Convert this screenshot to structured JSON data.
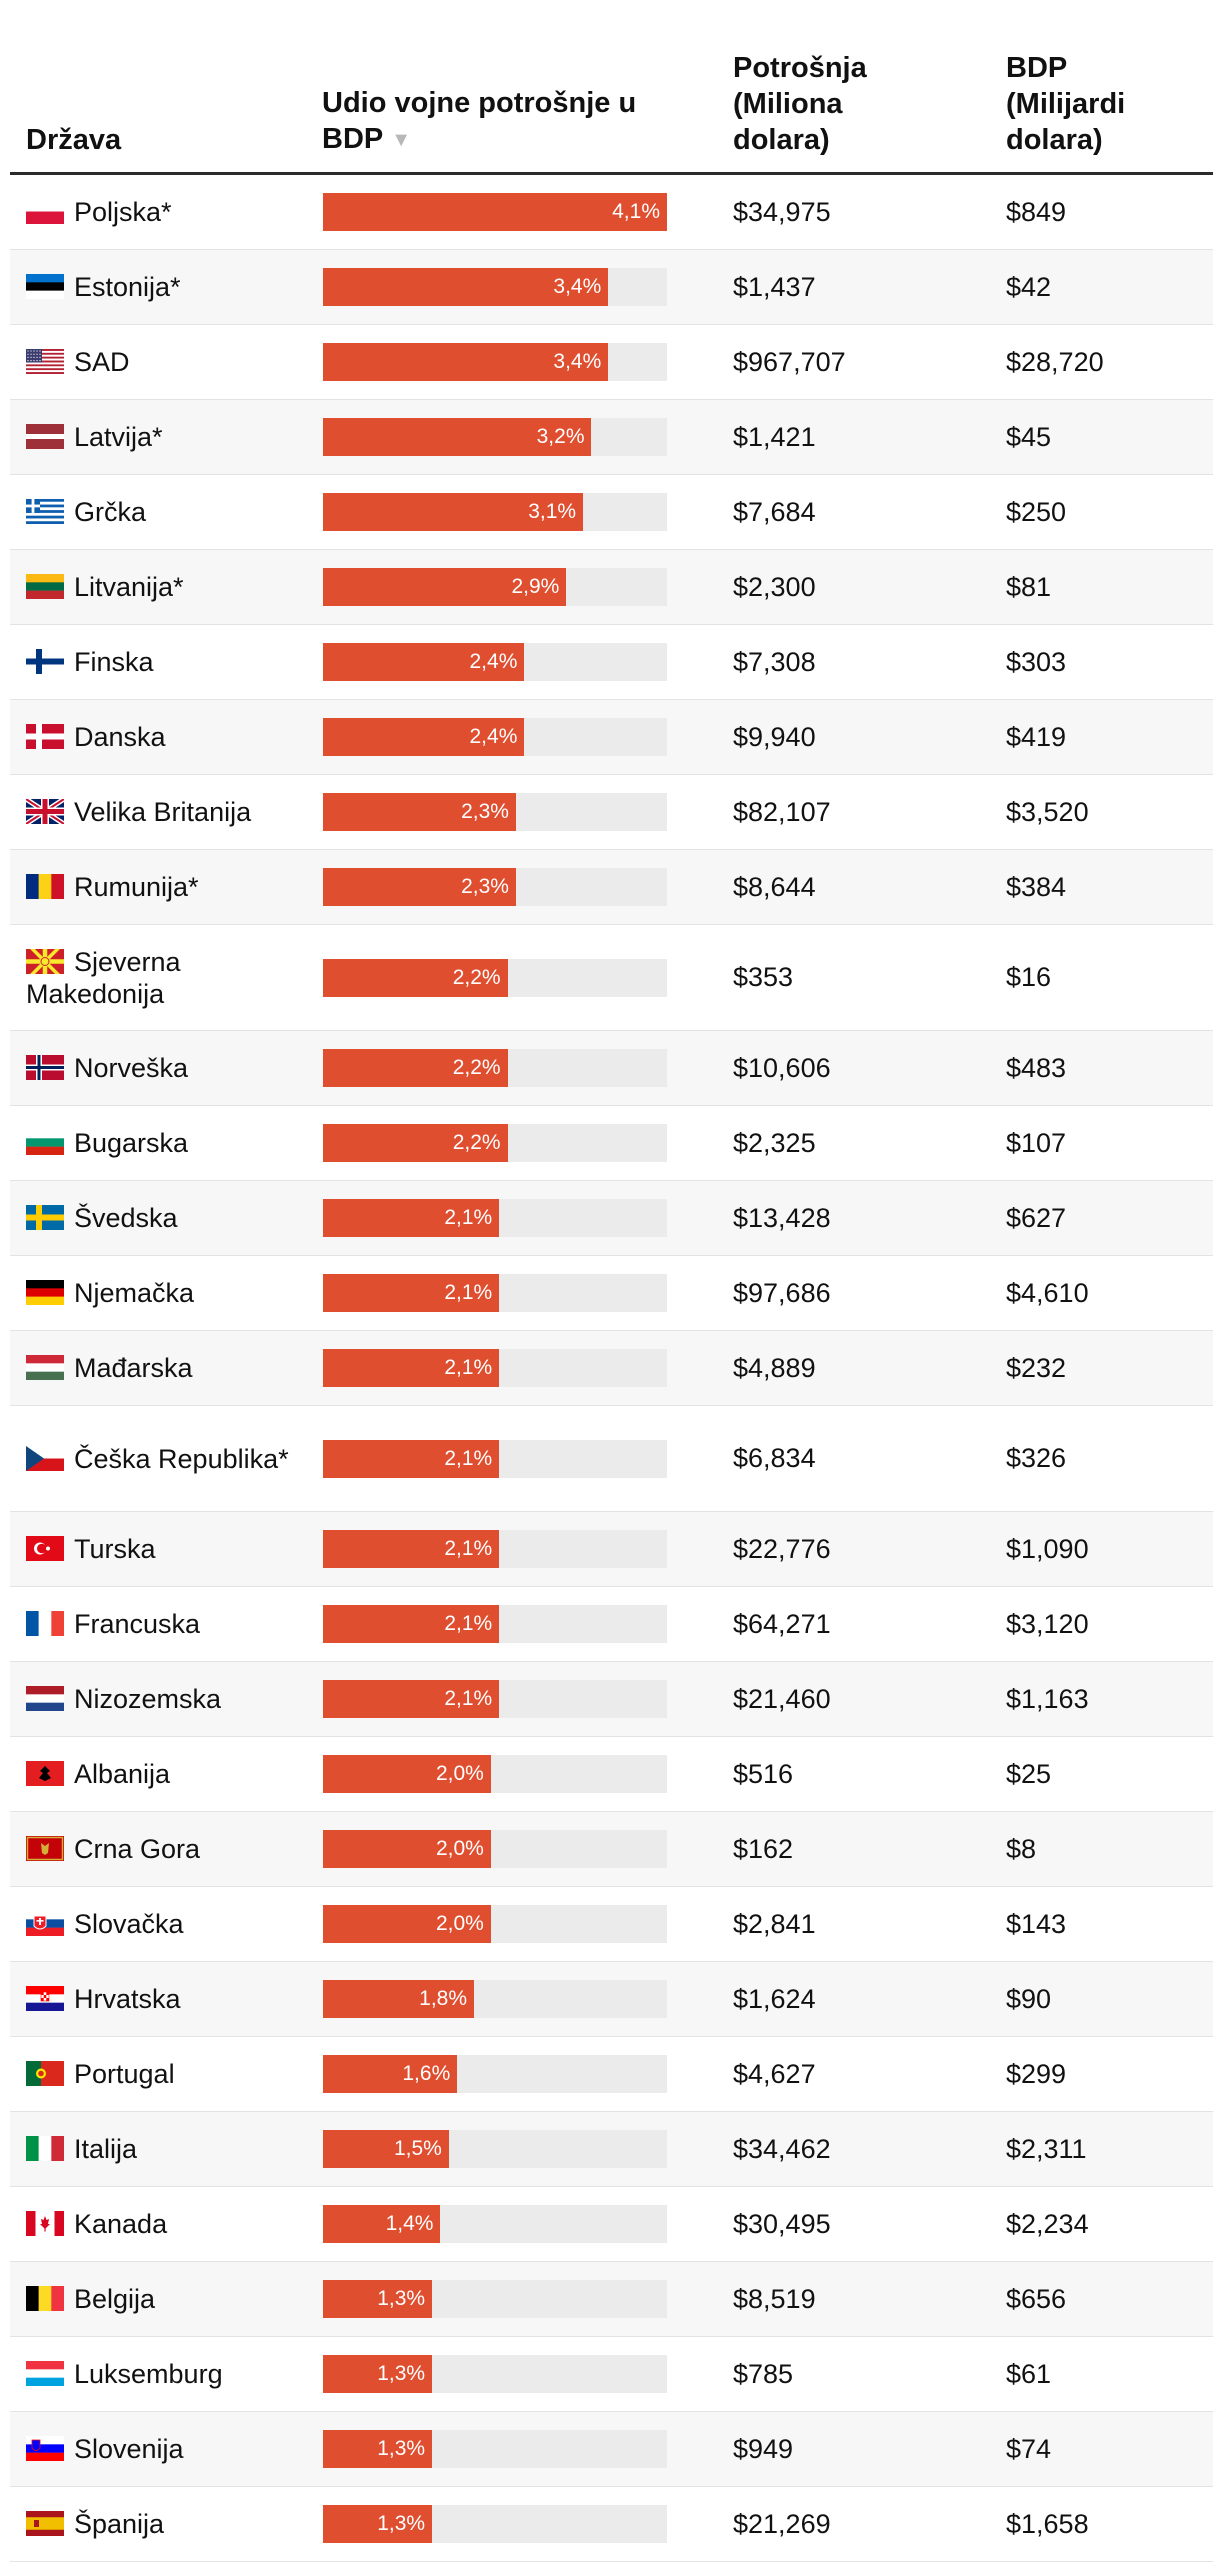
{
  "chart_data": {
    "type": "table",
    "columns": {
      "country": "Država",
      "share": "Udio vojne potrošnje u BDP",
      "spending": "Potrošnja (Miliona dolara)",
      "gdp": "BDP (Milijardi dolara)"
    },
    "sort_icon": "sort-down-icon",
    "axis_max": 4.1,
    "bar_color": "#e04e30",
    "track_color": "#ebebeb",
    "rows": [
      {
        "flag": "poland",
        "country": "Poljska*",
        "share": 4.1,
        "share_label": "4,1%",
        "spending": "$34,975",
        "gdp": "$849"
      },
      {
        "flag": "estonia",
        "country": "Estonija*",
        "share": 3.4,
        "share_label": "3,4%",
        "spending": "$1,437",
        "gdp": "$42"
      },
      {
        "flag": "usa",
        "country": "SAD",
        "share": 3.4,
        "share_label": "3,4%",
        "spending": "$967,707",
        "gdp": "$28,720"
      },
      {
        "flag": "latvia",
        "country": "Latvija*",
        "share": 3.2,
        "share_label": "3,2%",
        "spending": "$1,421",
        "gdp": "$45"
      },
      {
        "flag": "greece",
        "country": "Grčka",
        "share": 3.1,
        "share_label": "3,1%",
        "spending": "$7,684",
        "gdp": "$250"
      },
      {
        "flag": "lithuania",
        "country": "Litvanija*",
        "share": 2.9,
        "share_label": "2,9%",
        "spending": "$2,300",
        "gdp": "$81"
      },
      {
        "flag": "finland",
        "country": "Finska",
        "share": 2.4,
        "share_label": "2,4%",
        "spending": "$7,308",
        "gdp": "$303"
      },
      {
        "flag": "denmark",
        "country": "Danska",
        "share": 2.4,
        "share_label": "2,4%",
        "spending": "$9,940",
        "gdp": "$419"
      },
      {
        "flag": "uk",
        "country": "Velika Britanija",
        "share": 2.3,
        "share_label": "2,3%",
        "spending": "$82,107",
        "gdp": "$3,520"
      },
      {
        "flag": "romania",
        "country": "Rumunija*",
        "share": 2.3,
        "share_label": "2,3%",
        "spending": "$8,644",
        "gdp": "$384"
      },
      {
        "flag": "north-macedonia",
        "country": "Sjeverna Makedonija",
        "share": 2.2,
        "share_label": "2,2%",
        "spending": "$353",
        "gdp": "$16"
      },
      {
        "flag": "norway",
        "country": "Norveška",
        "share": 2.2,
        "share_label": "2,2%",
        "spending": "$10,606",
        "gdp": "$483"
      },
      {
        "flag": "bulgaria",
        "country": "Bugarska",
        "share": 2.2,
        "share_label": "2,2%",
        "spending": "$2,325",
        "gdp": "$107"
      },
      {
        "flag": "sweden",
        "country": "Švedska",
        "share": 2.1,
        "share_label": "2,1%",
        "spending": "$13,428",
        "gdp": "$627"
      },
      {
        "flag": "germany",
        "country": "Njemačka",
        "share": 2.1,
        "share_label": "2,1%",
        "spending": "$97,686",
        "gdp": "$4,610"
      },
      {
        "flag": "hungary",
        "country": "Mađarska",
        "share": 2.1,
        "share_label": "2,1%",
        "spending": "$4,889",
        "gdp": "$232"
      },
      {
        "flag": "czechia",
        "country": "Češka Republika*",
        "share": 2.1,
        "share_label": "2,1%",
        "spending": "$6,834",
        "gdp": "$326"
      },
      {
        "flag": "turkey",
        "country": "Turska",
        "share": 2.1,
        "share_label": "2,1%",
        "spending": "$22,776",
        "gdp": "$1,090"
      },
      {
        "flag": "france",
        "country": "Francuska",
        "share": 2.1,
        "share_label": "2,1%",
        "spending": "$64,271",
        "gdp": "$3,120"
      },
      {
        "flag": "netherlands",
        "country": "Nizozemska",
        "share": 2.1,
        "share_label": "2,1%",
        "spending": "$21,460",
        "gdp": "$1,163"
      },
      {
        "flag": "albania",
        "country": "Albanija",
        "share": 2.0,
        "share_label": "2,0%",
        "spending": "$516",
        "gdp": "$25"
      },
      {
        "flag": "montenegro",
        "country": "Crna Gora",
        "share": 2.0,
        "share_label": "2,0%",
        "spending": "$162",
        "gdp": "$8"
      },
      {
        "flag": "slovakia",
        "country": "Slovačka",
        "share": 2.0,
        "share_label": "2,0%",
        "spending": "$2,841",
        "gdp": "$143"
      },
      {
        "flag": "croatia",
        "country": "Hrvatska",
        "share": 1.8,
        "share_label": "1,8%",
        "spending": "$1,624",
        "gdp": "$90"
      },
      {
        "flag": "portugal",
        "country": "Portugal",
        "share": 1.6,
        "share_label": "1,6%",
        "spending": "$4,627",
        "gdp": "$299"
      },
      {
        "flag": "italy",
        "country": "Italija",
        "share": 1.5,
        "share_label": "1,5%",
        "spending": "$34,462",
        "gdp": "$2,311"
      },
      {
        "flag": "canada",
        "country": "Kanada",
        "share": 1.4,
        "share_label": "1,4%",
        "spending": "$30,495",
        "gdp": "$2,234"
      },
      {
        "flag": "belgium",
        "country": "Belgija",
        "share": 1.3,
        "share_label": "1,3%",
        "spending": "$8,519",
        "gdp": "$656"
      },
      {
        "flag": "luxembourg",
        "country": "Luksemburg",
        "share": 1.3,
        "share_label": "1,3%",
        "spending": "$785",
        "gdp": "$61"
      },
      {
        "flag": "slovenia",
        "country": "Slovenija",
        "share": 1.3,
        "share_label": "1,3%",
        "spending": "$949",
        "gdp": "$74"
      },
      {
        "flag": "spain",
        "country": "Španija",
        "share": 1.3,
        "share_label": "1,3%",
        "spending": "$21,269",
        "gdp": "$1,658"
      }
    ]
  }
}
